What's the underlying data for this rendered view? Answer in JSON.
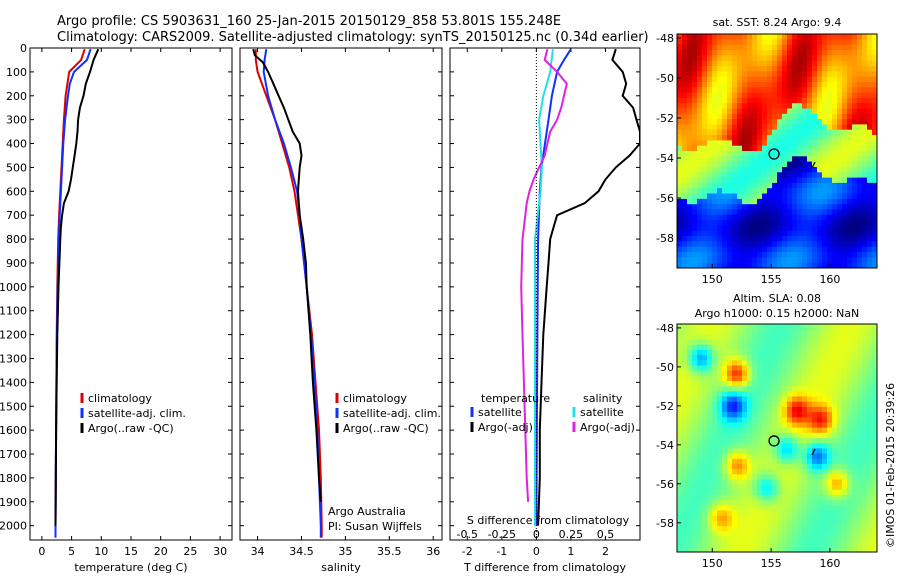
{
  "header": {
    "line1": "Argo profile: CS 5903631_160 25-Jan-2015 20150129_858 53.801S 155.248E",
    "line2": "Climatology: CARS2009. Satellite-adjusted climatology: synTS_20150125.nc (0.34d earlier)"
  },
  "colors": {
    "climatology": "#e00000",
    "satellite": "#1030ff",
    "argo": "#000000",
    "sal_satellite": "#20e0e8",
    "sal_argo": "#e020e0"
  },
  "chart_data": [
    {
      "type": "line",
      "xlabel": "temperature (deg C)",
      "xlim": [
        -2,
        32
      ],
      "xticks": [
        0,
        5,
        10,
        15,
        20,
        25,
        30
      ],
      "ylim": [
        2060,
        0
      ],
      "yticks": [
        0,
        100,
        200,
        300,
        400,
        500,
        600,
        700,
        800,
        900,
        1000,
        1100,
        1200,
        1300,
        1400,
        1500,
        1600,
        1700,
        1800,
        1900,
        2000
      ],
      "legend": [
        "climatology",
        "satellite-adj. clim.",
        "Argo(..raw -QC)"
      ],
      "series": [
        {
          "name": "climatology",
          "depth": [
            5,
            50,
            100,
            150,
            200,
            300,
            400,
            500,
            600,
            700,
            800,
            1000,
            1200,
            1400,
            1600,
            1800,
            2000,
            2050
          ],
          "values": [
            7.2,
            6.6,
            4.6,
            4.3,
            4.0,
            3.7,
            3.5,
            3.3,
            3.1,
            2.9,
            2.75,
            2.6,
            2.5,
            2.45,
            2.4,
            2.35,
            2.3,
            2.3
          ]
        },
        {
          "name": "satellite-adj. clim.",
          "depth": [
            5,
            50,
            100,
            150,
            200,
            300,
            400,
            500,
            600,
            700,
            800,
            1000,
            1200,
            1400,
            1600,
            1800,
            2000,
            2050
          ],
          "values": [
            8.2,
            7.6,
            5.4,
            4.7,
            4.4,
            3.9,
            3.6,
            3.4,
            3.2,
            3.0,
            2.85,
            2.65,
            2.55,
            2.45,
            2.4,
            2.35,
            2.3,
            2.3
          ]
        },
        {
          "name": "Argo(..raw -QC)",
          "depth": [
            5,
            50,
            100,
            150,
            200,
            250,
            300,
            350,
            400,
            450,
            500,
            550,
            600,
            650,
            700,
            750,
            800,
            900,
            1000,
            1200,
            1400,
            1600,
            1800,
            2000
          ],
          "values": [
            9.5,
            8.7,
            8.1,
            7.4,
            7.0,
            6.4,
            6.1,
            6.0,
            5.8,
            5.5,
            5.2,
            4.9,
            4.5,
            3.7,
            3.4,
            3.2,
            3.1,
            2.95,
            2.8,
            2.6,
            2.5,
            2.4,
            2.35,
            2.3
          ]
        }
      ]
    },
    {
      "type": "line",
      "xlabel": "salinity",
      "xlim": [
        33.8,
        36.1
      ],
      "xticks": [
        34,
        34.5,
        35,
        35.5,
        36
      ],
      "ylim": [
        2060,
        0
      ],
      "legend": [
        "climatology",
        "satellite-adj. clim.",
        "Argo(..raw -QC)"
      ],
      "annotations": [
        "Argo Australia",
        "PI: Susan Wijffels"
      ],
      "series": [
        {
          "name": "climatology",
          "depth": [
            5,
            50,
            100,
            200,
            300,
            400,
            500,
            600,
            700,
            800,
            1000,
            1200,
            1400,
            1600,
            1800,
            2000,
            2050
          ],
          "values": [
            33.98,
            33.98,
            34.0,
            34.1,
            34.2,
            34.28,
            34.36,
            34.42,
            34.46,
            34.5,
            34.56,
            34.62,
            34.66,
            34.7,
            34.72,
            34.73,
            34.73
          ]
        },
        {
          "name": "satellite-adj. clim.",
          "depth": [
            5,
            50,
            100,
            200,
            300,
            400,
            500,
            600,
            700,
            800,
            1000,
            1200,
            1400,
            1600,
            1800,
            2000,
            2050
          ],
          "values": [
            34.1,
            34.08,
            34.07,
            34.12,
            34.2,
            34.3,
            34.38,
            34.45,
            34.48,
            34.5,
            34.56,
            34.61,
            34.65,
            34.68,
            34.7,
            34.72,
            34.72
          ]
        },
        {
          "name": "Argo(..raw -QC)",
          "depth": [
            5,
            30,
            60,
            100,
            150,
            200,
            250,
            300,
            350,
            400,
            450,
            500,
            550,
            600,
            650,
            700,
            800,
            900,
            1000,
            1200,
            1400,
            1600,
            1800,
            1900
          ],
          "values": [
            33.95,
            33.97,
            34.06,
            34.12,
            34.18,
            34.24,
            34.3,
            34.35,
            34.4,
            34.48,
            34.5,
            34.48,
            34.47,
            34.46,
            34.47,
            34.48,
            34.52,
            34.55,
            34.56,
            34.6,
            34.63,
            34.67,
            34.7,
            34.72
          ]
        }
      ]
    },
    {
      "type": "line",
      "xlabel": "T difference from climatology",
      "x2label": "S difference from climatology",
      "xlim": [
        -2.5,
        3
      ],
      "xticks": [
        -2,
        -1,
        0,
        1,
        2
      ],
      "x2ticks": [
        -0.5,
        -0.25,
        0,
        0.25,
        0.5
      ],
      "x2ticklabels": [
        "-0.5",
        "-0.25",
        "0",
        "0.25",
        "0.5"
      ],
      "ylim": [
        2060,
        0
      ],
      "legend_temperature": {
        "title": "temperature",
        "items": [
          "satellite",
          "Argo(-adj)"
        ]
      },
      "legend_salinity": {
        "title": "salinity",
        "items": [
          "satellite",
          "Argo(-adj)"
        ]
      },
      "series": [
        {
          "name": "temperature satellite",
          "depth": [
            5,
            50,
            100,
            200,
            300,
            400,
            500,
            600,
            800,
            1000,
            1400,
            2000
          ],
          "values": [
            1.0,
            0.8,
            0.6,
            0.45,
            0.35,
            0.25,
            0.15,
            0.1,
            0.05,
            0.04,
            0.02,
            0.0
          ]
        },
        {
          "name": "temperature Argo(-adj)",
          "depth": [
            5,
            50,
            100,
            150,
            200,
            250,
            300,
            350,
            400,
            450,
            500,
            550,
            600,
            650,
            700,
            750,
            800,
            900,
            1000,
            1200,
            1400,
            1600,
            1800,
            2000
          ],
          "values": [
            2.3,
            2.2,
            2.5,
            2.6,
            2.5,
            2.8,
            2.9,
            3.0,
            3.0,
            2.7,
            2.3,
            2.0,
            1.8,
            1.4,
            0.6,
            0.5,
            0.4,
            0.35,
            0.3,
            0.2,
            0.15,
            0.1,
            0.1,
            0.05
          ]
        },
        {
          "name": "salinity satellite",
          "depth": [
            5,
            50,
            100,
            200,
            300,
            400,
            500,
            600,
            800,
            1000,
            1400,
            2000
          ],
          "values": [
            0.12,
            0.11,
            0.1,
            0.05,
            0.02,
            0.03,
            0.04,
            0.03,
            -0.01,
            -0.01,
            -0.01,
            -0.01
          ]
        },
        {
          "name": "salinity Argo(-adj)",
          "depth": [
            5,
            50,
            100,
            150,
            200,
            250,
            300,
            350,
            400,
            450,
            500,
            550,
            600,
            650,
            700,
            800,
            1000,
            1200,
            1400,
            1600,
            1800,
            1900
          ],
          "values": [
            0.08,
            0.06,
            0.15,
            0.22,
            0.2,
            0.18,
            0.15,
            0.1,
            0.08,
            0.06,
            0.02,
            -0.02,
            -0.05,
            -0.07,
            -0.08,
            -0.1,
            -0.11,
            -0.1,
            -0.09,
            -0.08,
            -0.07,
            -0.06
          ]
        }
      ]
    },
    {
      "type": "heatmap",
      "title": "sat. SST: 8.24 Argo: 9.4",
      "xlim": [
        147,
        164
      ],
      "ylim": [
        -59.5,
        -47.8
      ],
      "xticks": [
        150,
        155,
        160
      ],
      "yticks": [
        -48,
        -50,
        -52,
        -54,
        -56,
        -58
      ],
      "marker": {
        "lon": 155.25,
        "lat": -53.8
      }
    },
    {
      "type": "heatmap",
      "title": "Altim. SLA: 0.08",
      "subtitle": "Argo h1000: 0.15 h2000: NaN",
      "xlim": [
        147,
        164
      ],
      "ylim": [
        -59.5,
        -47.8
      ],
      "xticks": [
        150,
        155,
        160
      ],
      "yticks": [
        -48,
        -50,
        -52,
        -54,
        -56,
        -58
      ],
      "marker": {
        "lon": 155.25,
        "lat": -53.8
      }
    }
  ],
  "side_label": "©IMOS 01-Feb-2015 20:39:26"
}
